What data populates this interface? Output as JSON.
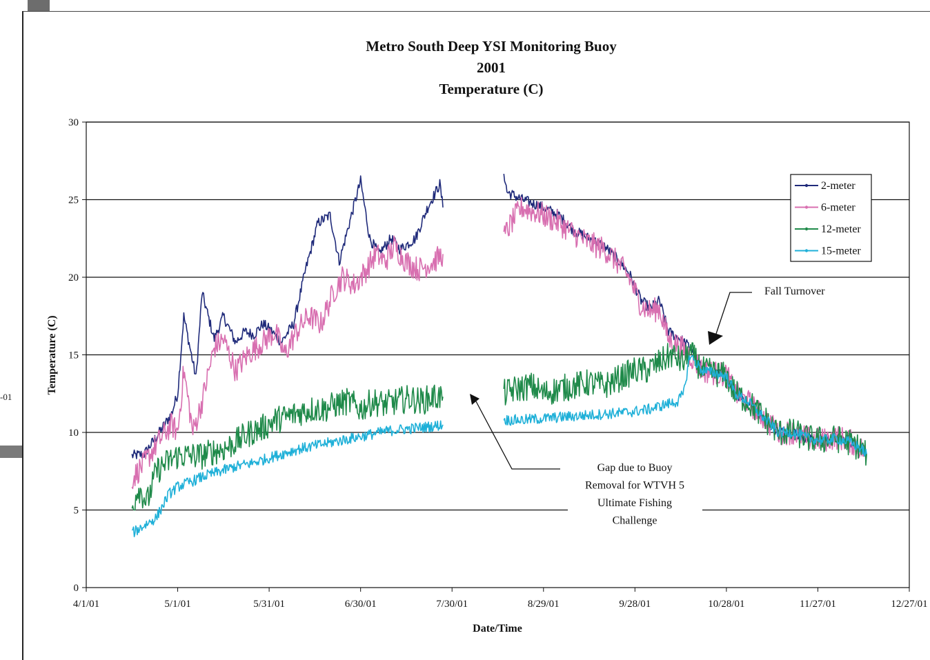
{
  "chart_data": {
    "type": "line",
    "title_lines": [
      "Metro South Deep YSI Monitoring Buoy",
      "2001",
      "Temperature (C)"
    ],
    "xlabel": "Date/Time",
    "ylabel": "Temperature (C)",
    "ylim": [
      0,
      30
    ],
    "yticks": [
      0,
      5,
      10,
      15,
      20,
      25,
      30
    ],
    "xlim": [
      "4/1/01",
      "12/27/01"
    ],
    "xticks": [
      "4/1/01",
      "5/1/01",
      "5/31/01",
      "6/30/01",
      "7/30/01",
      "8/29/01",
      "9/28/01",
      "10/28/01",
      "11/27/01",
      "12/27/01"
    ],
    "grid": "horizontal",
    "legend_position": "top-right",
    "series": [
      {
        "name": "2-meter",
        "color": "#1f2a7a",
        "segments": [
          {
            "x": [
              "4/16/01",
              "4/20/01",
              "4/25/01",
              "4/29/01",
              "5/1/01",
              "5/3/01",
              "5/7/01",
              "5/9/01",
              "5/13/01",
              "5/16/01",
              "5/20/01",
              "5/23/01",
              "5/26/01",
              "5/29/01",
              "6/1/01",
              "6/4/01",
              "6/8/01",
              "6/12/01",
              "6/16/01",
              "6/20/01",
              "6/23/01",
              "6/27/01",
              "6/30/01",
              "7/3/01",
              "7/6/01",
              "7/10/01",
              "7/13/01",
              "7/18/01",
              "7/22/01",
              "7/26/01",
              "7/27/01"
            ],
            "y": [
              8.5,
              8.6,
              10.0,
              11.2,
              12.5,
              17.5,
              13.5,
              19.0,
              16.0,
              17.5,
              15.8,
              16.5,
              16.3,
              17.0,
              16.5,
              15.8,
              17.0,
              20.5,
              23.5,
              24.0,
              21.0,
              24.0,
              26.2,
              22.5,
              21.5,
              22.5,
              21.8,
              22.5,
              24.5,
              26.0,
              24.5
            ]
          },
          {
            "x": [
              "8/16/01",
              "8/17/01",
              "8/22/01",
              "8/29/01",
              "9/3/01",
              "9/8/01",
              "9/13/01",
              "9/18/01",
              "9/23/01",
              "9/26/01",
              "9/30/01",
              "10/3/01",
              "10/6/01",
              "10/9/01",
              "10/13/01",
              "10/16/01",
              "10/20/01",
              "10/25/01",
              "10/28/01",
              "10/31/01",
              "11/4/01",
              "11/9/01",
              "11/14/01",
              "11/19/01",
              "11/24/01",
              "11/29/01",
              "12/3/01",
              "12/7/01",
              "12/11/01",
              "12/13/01"
            ],
            "y": [
              26.8,
              25.5,
              25.0,
              24.5,
              24.0,
              23.0,
              22.5,
              22.0,
              21.0,
              20.3,
              18.5,
              18.0,
              18.5,
              16.5,
              16.0,
              15.5,
              14.0,
              13.8,
              13.7,
              12.5,
              12.0,
              11.0,
              10.0,
              10.0,
              9.6,
              9.5,
              9.6,
              9.5,
              9.0,
              8.6
            ]
          }
        ]
      },
      {
        "name": "6-meter",
        "color": "#d86fb0",
        "segments": [
          {
            "x": [
              "4/16/01",
              "4/20/01",
              "4/25/01",
              "4/29/01",
              "5/1/01",
              "5/3/01",
              "5/6/01",
              "5/9/01",
              "5/13/01",
              "5/16/01",
              "5/20/01",
              "5/24/01",
              "5/27/01",
              "5/30/01",
              "6/2/01",
              "6/5/01",
              "6/9/01",
              "6/13/01",
              "6/17/01",
              "6/21/01",
              "6/24/01",
              "6/28/01",
              "7/2/01",
              "7/5/01",
              "7/8/01",
              "7/11/01",
              "7/15/01",
              "7/19/01",
              "7/24/01",
              "7/27/01"
            ],
            "y": [
              7.0,
              8.0,
              9.5,
              10.5,
              10.0,
              14.0,
              10.0,
              12.0,
              15.5,
              16.0,
              14.0,
              15.0,
              15.5,
              16.0,
              16.5,
              15.0,
              16.5,
              17.5,
              17.0,
              19.0,
              20.0,
              19.5,
              20.5,
              21.5,
              21.0,
              22.0,
              21.0,
              20.5,
              21.0,
              21.5
            ]
          },
          {
            "x": [
              "8/16/01",
              "8/17/01",
              "8/20/01",
              "8/22/01",
              "8/29/01",
              "9/3/01",
              "9/8/01",
              "9/13/01",
              "9/18/01",
              "9/23/01",
              "9/26/01",
              "9/30/01",
              "10/3/01",
              "10/6/01",
              "10/9/01",
              "10/13/01",
              "10/16/01",
              "10/20/01",
              "10/25/01",
              "10/28/01",
              "10/31/01",
              "11/4/01",
              "11/9/01",
              "11/14/01",
              "11/19/01",
              "11/24/01",
              "11/29/01",
              "12/3/01",
              "12/7/01",
              "12/11/01",
              "12/13/01"
            ],
            "y": [
              22.5,
              23.0,
              24.0,
              24.5,
              24.0,
              23.5,
              22.8,
              22.2,
              21.8,
              20.8,
              20.0,
              18.2,
              17.8,
              18.0,
              16.0,
              15.5,
              15.0,
              14.0,
              13.8,
              13.7,
              12.5,
              12.0,
              11.0,
              10.0,
              10.0,
              9.6,
              9.5,
              9.7,
              9.5,
              9.0,
              8.6
            ]
          }
        ]
      },
      {
        "name": "12-meter",
        "color": "#1f8a4a",
        "segments": [
          {
            "x": [
              "4/16/01",
              "4/18/01",
              "4/21/01",
              "4/24/01",
              "4/27/01",
              "5/1/01",
              "5/5/01",
              "5/9/01",
              "5/13/01",
              "5/17/01",
              "5/21/01",
              "5/25/01",
              "5/29/01",
              "6/2/01",
              "6/6/01",
              "6/10/01",
              "6/14/01",
              "6/18/01",
              "6/22/01",
              "6/26/01",
              "6/30/01",
              "7/4/01",
              "7/8/01",
              "7/12/01",
              "7/16/01",
              "7/20/01",
              "7/24/01",
              "7/27/01"
            ],
            "y": [
              5.0,
              6.5,
              5.5,
              7.5,
              8.0,
              8.5,
              8.5,
              8.5,
              8.8,
              9.0,
              9.5,
              10.0,
              10.3,
              10.8,
              11.0,
              11.3,
              11.5,
              11.5,
              11.8,
              12.0,
              11.5,
              12.0,
              11.8,
              12.0,
              12.2,
              12.0,
              12.3,
              12.3
            ]
          },
          {
            "x": [
              "8/16/01",
              "8/20/01",
              "8/25/01",
              "8/29/01",
              "9/3/01",
              "9/8/01",
              "9/13/01",
              "9/18/01",
              "9/23/01",
              "9/28/01",
              "10/2/01",
              "10/6/01",
              "10/10/01",
              "10/14/01",
              "10/16/01",
              "10/20/01",
              "10/25/01",
              "10/28/01",
              "10/31/01",
              "11/4/01",
              "11/9/01",
              "11/14/01",
              "11/19/01",
              "11/24/01",
              "11/29/01",
              "12/3/01",
              "12/7/01",
              "12/11/01",
              "12/13/01"
            ],
            "y": [
              12.5,
              12.8,
              13.0,
              12.5,
              12.8,
              13.0,
              13.2,
              13.0,
              13.5,
              14.0,
              14.0,
              14.5,
              15.0,
              14.5,
              15.2,
              14.0,
              13.8,
              13.6,
              12.5,
              12.0,
              11.0,
              10.0,
              10.0,
              9.6,
              9.5,
              9.6,
              9.4,
              9.0,
              8.6
            ]
          }
        ]
      },
      {
        "name": "15-meter",
        "color": "#1fb0d8",
        "segments": [
          {
            "x": [
              "4/16/01",
              "4/20/01",
              "4/24/01",
              "4/28/01",
              "5/1/01",
              "5/5/01",
              "5/10/01",
              "5/15/01",
              "5/20/01",
              "5/25/01",
              "5/30/01",
              "6/4/01",
              "6/9/01",
              "6/14/01",
              "6/19/01",
              "6/24/01",
              "6/29/01",
              "7/4/01",
              "7/9/01",
              "7/14/01",
              "7/19/01",
              "7/24/01",
              "7/27/01"
            ],
            "y": [
              3.5,
              4.0,
              4.5,
              6.0,
              6.5,
              6.8,
              7.2,
              7.5,
              7.8,
              8.0,
              8.3,
              8.6,
              8.9,
              9.1,
              9.3,
              9.5,
              9.7,
              9.9,
              10.1,
              10.2,
              10.3,
              10.4,
              10.5
            ]
          },
          {
            "x": [
              "8/16/01",
              "8/22/01",
              "8/29/01",
              "9/5/01",
              "9/12/01",
              "9/19/01",
              "9/26/01",
              "10/3/01",
              "10/8/01",
              "10/12/01",
              "10/14/01",
              "10/16/01",
              "10/20/01",
              "10/25/01",
              "10/28/01",
              "10/31/01",
              "11/4/01",
              "11/9/01",
              "11/14/01",
              "11/19/01",
              "11/24/01",
              "11/29/01",
              "12/3/01",
              "12/7/01",
              "12/11/01",
              "12/13/01"
            ],
            "y": [
              10.8,
              10.8,
              10.9,
              11.0,
              11.1,
              11.2,
              11.3,
              11.5,
              11.8,
              12.0,
              12.5,
              15.0,
              14.0,
              13.8,
              13.6,
              12.5,
              12.0,
              11.0,
              10.0,
              10.0,
              9.6,
              9.5,
              9.6,
              9.4,
              9.0,
              8.6
            ]
          }
        ]
      }
    ],
    "annotations": [
      {
        "id": "fall",
        "lines": [
          "Fall Turnover"
        ]
      },
      {
        "id": "gap",
        "lines": [
          "Gap due to Buoy",
          "Removal for WTVH 5",
          "Ultimate Fishing",
          "Challenge"
        ]
      }
    ]
  },
  "background": {
    "edge_text": "-01"
  }
}
